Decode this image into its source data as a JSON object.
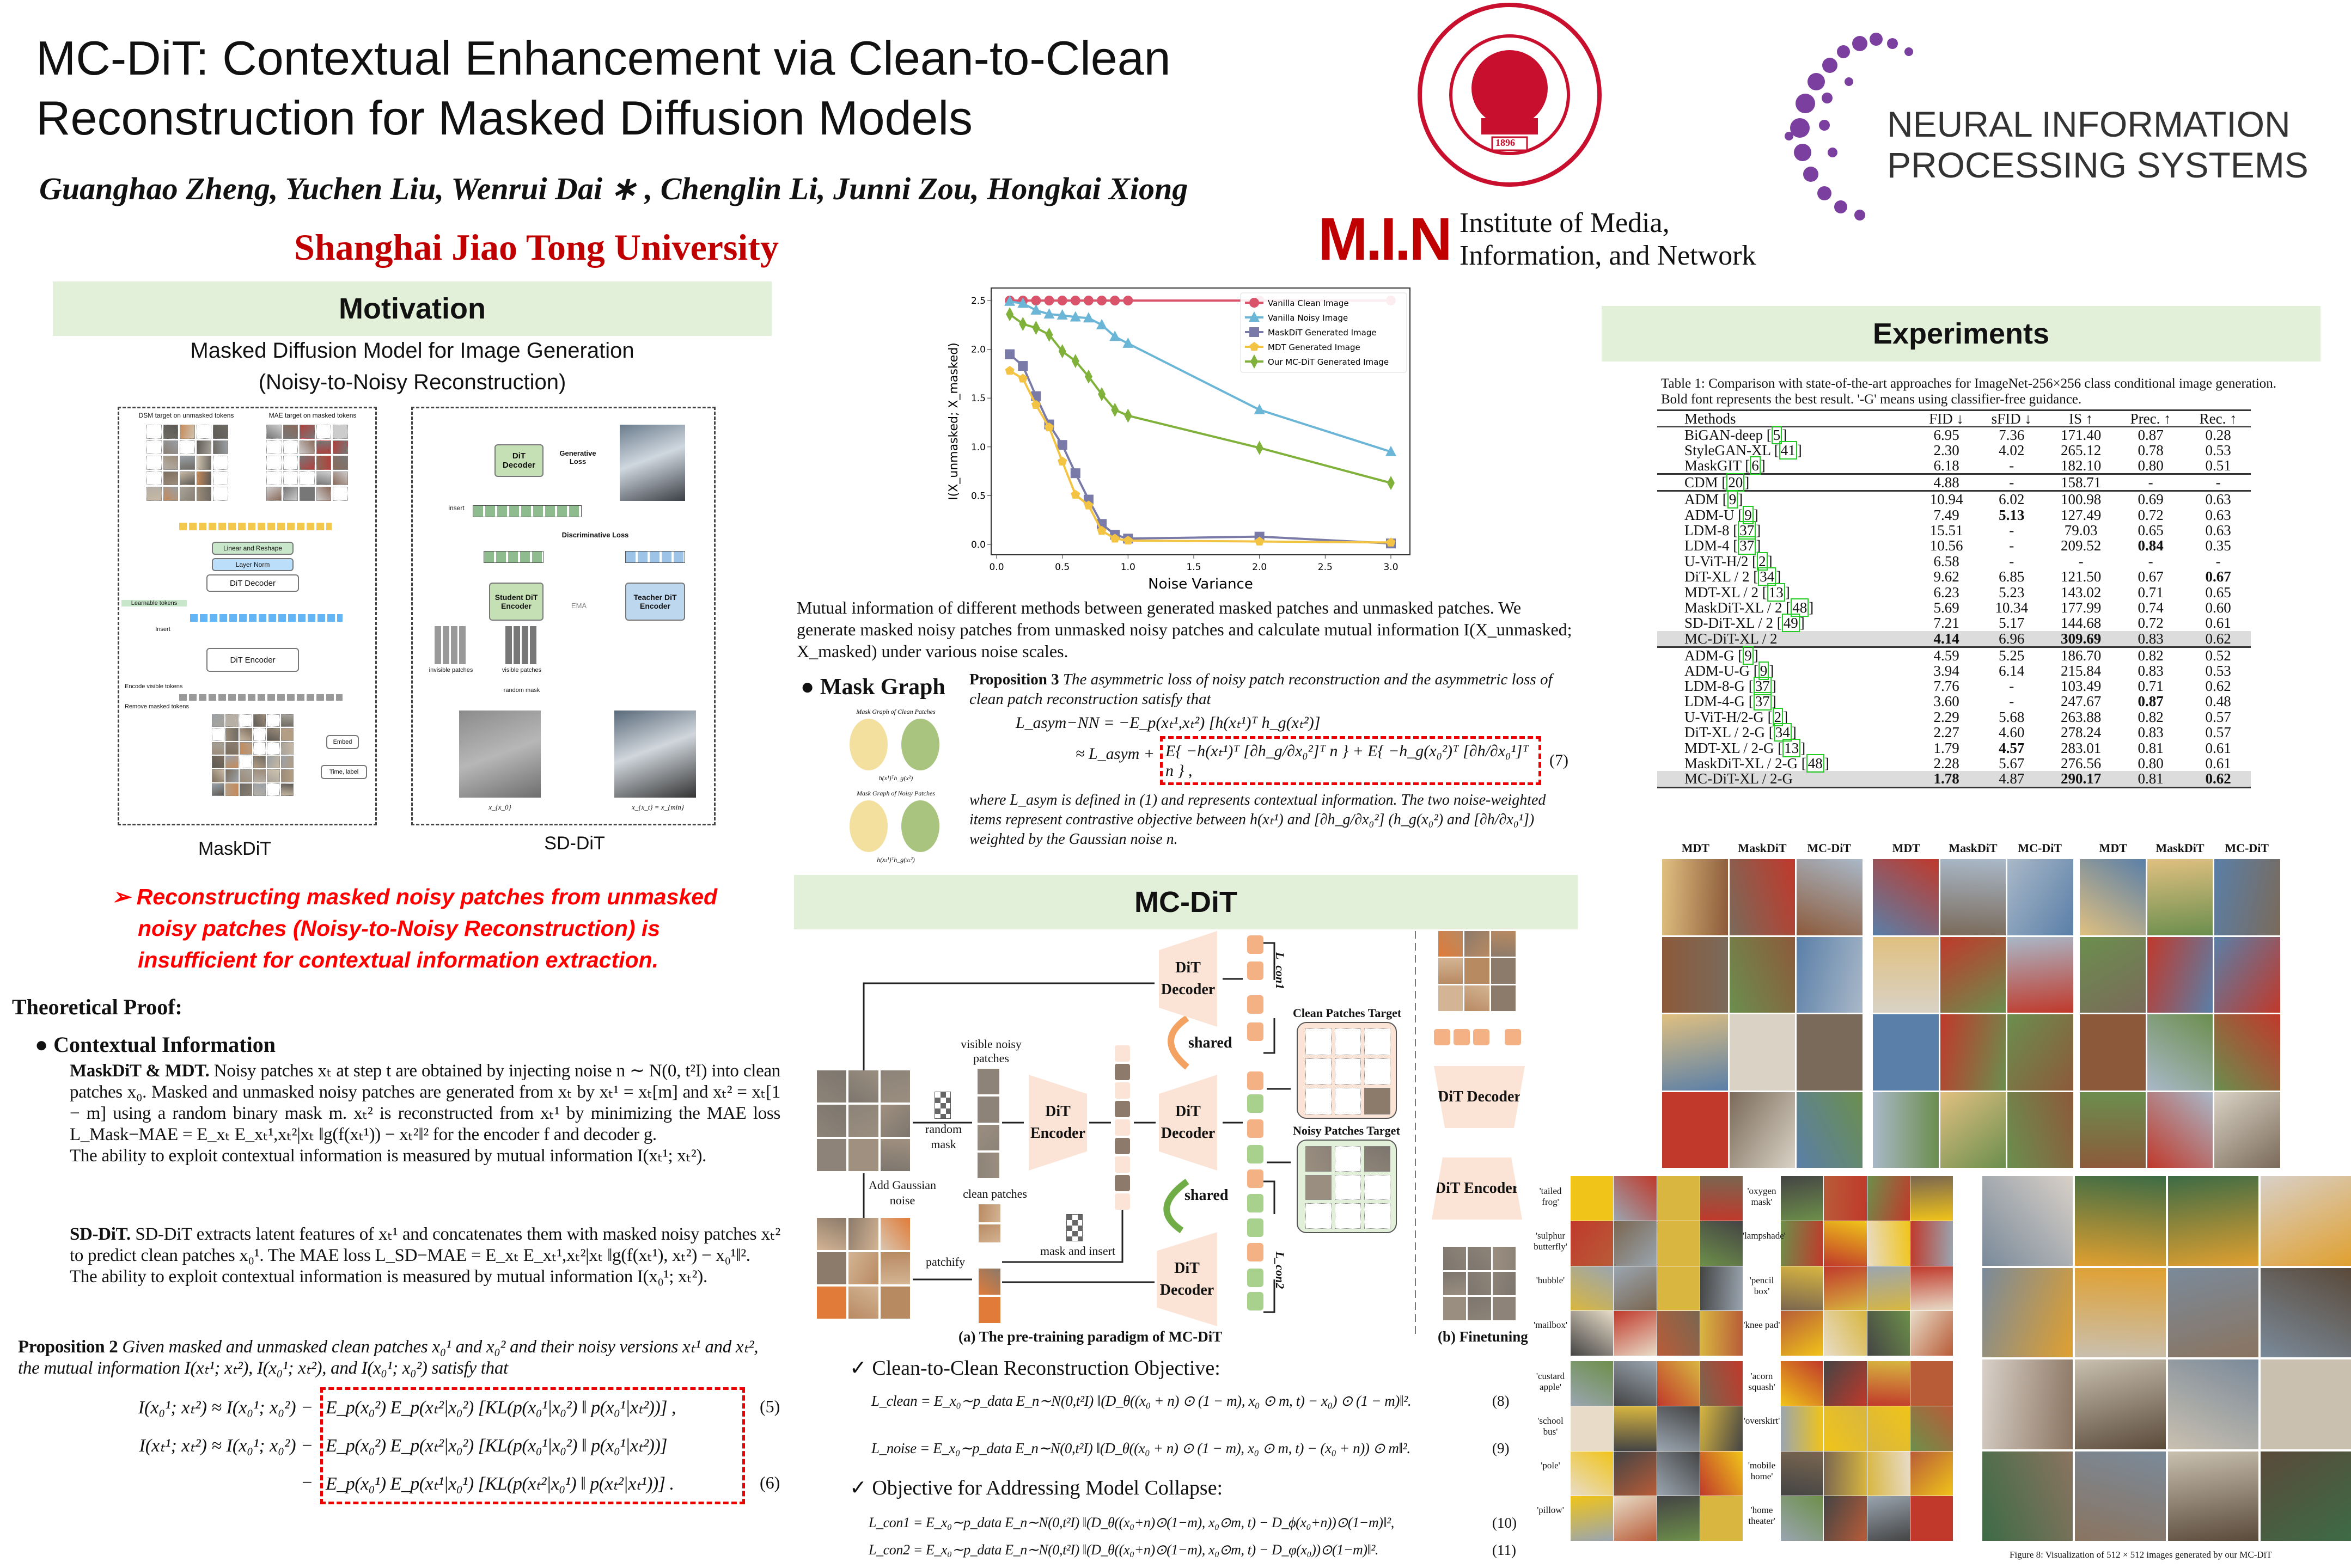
{
  "header": {
    "title_line1": "MC-DiT: Contextual Enhancement via Clean-to-Clean",
    "title_line2": "Reconstruction for Masked Diffusion Models",
    "authors": "Guanghao Zheng, Yuchen Liu, Wenrui Dai ∗ , Chenglin Li, Junni Zou, Hongkai Xiong",
    "affiliation": "Shanghai Jiao Tong University",
    "logos": {
      "sjtu_ring_text": "SHANGHAI JIAO TONG UNIVERSITY",
      "sjtu_year": "1896",
      "min_mark": "M.I.N",
      "min_text_1": "Institute of Media,",
      "min_text_2": "Information, and Network",
      "neurips_1": "NEURAL INFORMATION",
      "neurips_2": "PROCESSING SYSTEMS"
    }
  },
  "motivation": {
    "heading": "Motivation",
    "subtitle1": "Masked Diffusion Model for Image Generation",
    "subtitle2": "(Noisy-to-Noisy Reconstruction)",
    "maskdit_fig": {
      "caption": "MaskDiT",
      "labels": [
        "DSM target on unmasked tokens",
        "MAE target on masked tokens",
        "Linear and Reshape",
        "Layer Norm",
        "DiT Decoder",
        "Learnable tokens",
        "Insert",
        "DiT Encoder",
        "Encode visible tokens",
        "Remove masked tokens",
        "Embed",
        "Time, label"
      ]
    },
    "sddit_fig": {
      "caption": "SD-DiT",
      "labels": [
        "DiT Decoder",
        "Generative Loss",
        "insert",
        "Discriminative Loss",
        "Student DiT Encoder",
        "EMA",
        "Teacher DiT Encoder",
        "invisible patches",
        "visible patches",
        "random mask",
        "x_{x_0}",
        "x_{x_t} = x_{min}"
      ]
    },
    "highlight_line1": "Reconstructing masked noisy patches from unmasked",
    "highlight_line2": "noisy patches (Noisy-to-Noisy Reconstruction) is",
    "highlight_line3": "insufficient for contextual information extraction."
  },
  "theory": {
    "heading": "Theoretical Proof:",
    "bullet": "Contextual Information",
    "maskdit_lead": "MaskDiT & MDT.",
    "maskdit_text": "Noisy patches xₜ at step t are obtained by injecting noise n ∼ N(0, t²I) into clean patches x₀. Masked and unmasked noisy patches are generated from xₜ by xₜ¹ = xₜ[m] and xₜ² = xₜ[1 − m] using a random binary mask m. xₜ² is reconstructed from xₜ¹ by minimizing the MAE loss L_Mask−MAE = E_xₜ E_xₜ¹,xₜ²|xₜ ‖g(f(xₜ¹)) − xₜ²‖² for the encoder f and decoder g.",
    "maskdit_measure": "The ability to exploit contextual information is measured by mutual information I(xₜ¹; xₜ²).",
    "sddit_lead": "SD-DiT.",
    "sddit_text": "SD-DiT extracts latent features of xₜ¹ and concatenates them with masked noisy patches xₜ² to predict clean patches x₀¹. The MAE loss L_SD−MAE = E_xₜ E_xₜ¹,xₜ²|xₜ ‖g(f(xₜ¹), xₜ²) − x₀¹‖².",
    "sddit_measure": "The ability to exploit contextual information is measured by mutual information I(x₀¹; xₜ²).",
    "prop2_lead": "Proposition 2",
    "prop2_text": "Given masked and unmasked clean patches x₀¹ and x₀² and their noisy versions xₜ¹ and xₜ², the mutual information I(xₜ¹; xₜ²), I(x₀¹; xₜ²), and I(x₀¹; x₀²) satisfy that",
    "eq5_lhs": "I(x₀¹; xₜ²) ≈ I(x₀¹; x₀²) −",
    "eq5_rhs": "E_p(x₀²) E_p(xₜ²|x₀²) [KL(p(x₀¹|x₀²) ‖ p(x₀¹|xₜ²))] ,",
    "eq6a_lhs": "I(xₜ¹; xₜ²) ≈ I(x₀¹; x₀²) −",
    "eq6a_rhs": "E_p(x₀²) E_p(xₜ²|x₀²) [KL(p(x₀¹|x₀²) ‖ p(x₀¹|xₜ²))]",
    "eq6b_lhs": "−",
    "eq6b_rhs": "E_p(x₀¹) E_p(xₜ¹|x₀¹) [KL(p(xₜ²|x₀¹) ‖ p(xₜ²|xₜ¹))] .",
    "eq5_num": "(5)",
    "eq6_num": "(6)"
  },
  "chart_data": {
    "type": "line",
    "xlabel": "Noise Variance",
    "ylabel": "I(X_unmasked; X_masked)",
    "xlim": [
      0,
      3.0
    ],
    "ylim": [
      -0.1,
      2.6
    ],
    "xticks": [
      "0.0",
      "0.5",
      "1.0",
      "1.5",
      "2.0",
      "2.5",
      "3.0"
    ],
    "yticks": [
      "0.0",
      "0.5",
      "1.0",
      "1.5",
      "2.0",
      "2.5"
    ],
    "grid": false,
    "legend": "top-right",
    "x": [
      0.1,
      0.2,
      0.3,
      0.4,
      0.5,
      0.6,
      0.7,
      0.8,
      0.9,
      1.0,
      2.0,
      3.0
    ],
    "series": [
      {
        "name": "Vanilla Clean Image",
        "color": "#d9546b",
        "marker": "circle",
        "values": [
          2.5,
          2.5,
          2.5,
          2.5,
          2.5,
          2.5,
          2.5,
          2.5,
          2.5,
          2.5,
          2.5,
          2.5
        ]
      },
      {
        "name": "Vanilla Noisy Image",
        "color": "#6bb6d6",
        "marker": "triangle",
        "values": [
          2.49,
          2.47,
          2.4,
          2.36,
          2.35,
          2.33,
          2.32,
          2.25,
          2.13,
          2.06,
          1.38,
          0.95
        ]
      },
      {
        "name": "MaskDiT Generated Image",
        "color": "#7a7aa8",
        "marker": "square",
        "values": [
          1.95,
          1.83,
          1.52,
          1.23,
          1.02,
          0.73,
          0.46,
          0.21,
          0.1,
          0.06,
          0.08,
          0.01
        ]
      },
      {
        "name": "MDT Generated Image",
        "color": "#f3c443",
        "marker": "pentagon",
        "values": [
          1.78,
          1.7,
          1.43,
          1.2,
          0.85,
          0.51,
          0.4,
          0.14,
          0.06,
          0.04,
          0.03,
          0.02
        ]
      },
      {
        "name": "Our MC-DiT Generated Image",
        "color": "#7fb13b",
        "marker": "diamond",
        "values": [
          2.36,
          2.26,
          2.22,
          2.15,
          1.98,
          1.88,
          1.72,
          1.54,
          1.38,
          1.32,
          0.99,
          0.63
        ]
      }
    ]
  },
  "middle": {
    "chart_caption": "Mutual information of different methods between generated masked patches and unmasked patches. We generate masked noisy patches from unmasked noisy patches and calculate mutual information I(X_unmasked; X_masked) under various noise scales.",
    "mask_graph_heading": "Mask Graph",
    "mask_graph_clean": "Mask Graph of Clean Patches",
    "mask_graph_noisy": "Mask Graph of Noisy Patches",
    "mask_graph_clean_formula": "h(x¹)ᵀh_g(x²)",
    "mask_graph_noisy_formula": "h(xₜ¹)ᵀh_g(xₜ²)",
    "prop3_lead": "Proposition 3",
    "prop3_text": "The asymmetric loss of noisy patch reconstruction and the asymmetric loss of clean patch reconstruction satisfy that",
    "eq7_line1": "L_asym−NN = −E_p(xₜ¹,xₜ²) [h(xₜ¹)ᵀ h_g(xₜ²)]",
    "eq7_line2_lhs": "≈ L_asym +",
    "eq7_line2_rhs": "E{ −h(xₜ¹)ᵀ [∂h_g/∂x₀²]ᵀ n } + E{ −h_g(x₀²)ᵀ [∂h/∂x₀¹]ᵀ n } ,",
    "eq7_num": "(7)",
    "prop3_after": "where L_asym is defined in (1) and represents contextual information. The two noise-weighted items represent contrastive objective between h(xₜ¹) and [∂h_g/∂x₀²] (h_g(x₀²) and [∂h/∂x₀¹]) weighted by the Gaussian noise n.",
    "mcdit_heading": "MC-DiT",
    "pipeline": {
      "dit_decoder": "DiT Decoder",
      "dit_encoder": "DiT Encoder",
      "shared": "shared",
      "visible_noisy": "visible noisy patches",
      "random_mask": "random mask",
      "add_noise": "Add Gaussian noise",
      "clean_patches": "clean patches",
      "patchify": "patchify",
      "mask_insert": "mask and insert",
      "clean_target": "Clean Patches Target",
      "noisy_target": "Noisy Patches Target",
      "l_con1": "L_con1",
      "l_con2": "L_con2",
      "caption_a": "(a) The pre-training paradigm of MC-DiT",
      "caption_b": "(b) Finetuning"
    },
    "obj1_heading": "Clean-to-Clean Reconstruction Objective:",
    "eq8": "L_clean = E_x₀∼p_data E_n∼N(0,t²I) ‖(D_θ((x₀ + n) ⊙ (1 − m), x₀ ⊙ m, t) − x₀) ⊙ (1 − m)‖².",
    "eq8_num": "(8)",
    "eq9": "L_noise = E_x₀∼p_data E_n∼N(0,t²I) ‖(D_θ((x₀ + n) ⊙ (1 − m), x₀ ⊙ m, t) − (x₀ + n)) ⊙ m‖².",
    "eq9_num": "(9)",
    "obj2_heading": "Objective for Addressing Model Collapse:",
    "eq10": "L_con1 = E_x₀∼p_data E_n∼N(0,t²I) ‖(D_θ((x₀+n)⊙(1−m), x₀⊙m, t) − D_ϕ(x₀+n))⊙(1−m)‖²,",
    "eq10_num": "(10)",
    "eq11": "L_con2 = E_x₀∼p_data E_n∼N(0,t²I) ‖(D_θ((x₀+n)⊙(1−m), x₀⊙m, t) − D_φ(x₀))⊙(1−m)‖².",
    "eq11_num": "(11)"
  },
  "experiments": {
    "heading": "Experiments",
    "table_caption": "Table 1: Comparison with state-of-the-art approaches for ImageNet-256×256 class conditional image generation. Bold font represents the best result. '-G' means using classifier-free guidance.",
    "columns": [
      "Methods",
      "FID ↓",
      "sFID ↓",
      "IS ↑",
      "Prec. ↑",
      "Rec. ↑"
    ],
    "rows": [
      {
        "method": "BiGAN-deep",
        "ref": "5",
        "vals": [
          "6.95",
          "7.36",
          "171.40",
          "0.87",
          "0.28"
        ],
        "group_start": false
      },
      {
        "method": "StyleGAN-XL",
        "ref": "41",
        "vals": [
          "2.30",
          "4.02",
          "265.12",
          "0.78",
          "0.53"
        ]
      },
      {
        "method": "MaskGIT",
        "ref": "6",
        "vals": [
          "6.18",
          "-",
          "182.10",
          "0.80",
          "0.51"
        ]
      },
      {
        "method": "CDM",
        "ref": "20",
        "vals": [
          "4.88",
          "-",
          "158.71",
          "-",
          "-"
        ],
        "group_start": true
      },
      {
        "method": "ADM",
        "ref": "9",
        "vals": [
          "10.94",
          "6.02",
          "100.98",
          "0.69",
          "0.63"
        ],
        "group_start": true
      },
      {
        "method": "ADM-U",
        "ref": "9",
        "vals": [
          "7.49",
          "5.13",
          "127.49",
          "0.72",
          "0.63"
        ],
        "bold": [
          1
        ]
      },
      {
        "method": "LDM-8",
        "ref": "37",
        "vals": [
          "15.51",
          "-",
          "79.03",
          "0.65",
          "0.63"
        ]
      },
      {
        "method": "LDM-4",
        "ref": "37",
        "vals": [
          "10.56",
          "-",
          "209.52",
          "0.84",
          "0.35"
        ],
        "bold": [
          3
        ]
      },
      {
        "method": "U-ViT-H/2",
        "ref": "2",
        "vals": [
          "6.58",
          "-",
          "-",
          "-",
          "-"
        ]
      },
      {
        "method": "DiT-XL / 2",
        "ref": "34",
        "vals": [
          "9.62",
          "6.85",
          "121.50",
          "0.67",
          "0.67"
        ],
        "bold": [
          4
        ]
      },
      {
        "method": "MDT-XL / 2",
        "ref": "13",
        "vals": [
          "6.23",
          "5.23",
          "143.02",
          "0.71",
          "0.65"
        ]
      },
      {
        "method": "MaskDiT-XL / 2",
        "ref": "48",
        "vals": [
          "5.69",
          "10.34",
          "177.99",
          "0.74",
          "0.60"
        ]
      },
      {
        "method": "SD-DiT-XL / 2",
        "ref": "49",
        "vals": [
          "7.21",
          "5.17",
          "144.68",
          "0.72",
          "0.61"
        ]
      },
      {
        "method": "MC-DiT-XL / 2",
        "ref": "",
        "vals": [
          "4.14",
          "6.96",
          "309.69",
          "0.83",
          "0.62"
        ],
        "bold": [
          0,
          2
        ],
        "highlight": true
      },
      {
        "method": "ADM-G",
        "ref": "9",
        "vals": [
          "4.59",
          "5.25",
          "186.70",
          "0.82",
          "0.52"
        ],
        "group_start": true
      },
      {
        "method": "ADM-U-G",
        "ref": "9",
        "vals": [
          "3.94",
          "6.14",
          "215.84",
          "0.83",
          "0.53"
        ]
      },
      {
        "method": "LDM-8-G",
        "ref": "37",
        "vals": [
          "7.76",
          "-",
          "103.49",
          "0.71",
          "0.62"
        ]
      },
      {
        "method": "LDM-4-G",
        "ref": "37",
        "vals": [
          "3.60",
          "-",
          "247.67",
          "0.87",
          "0.48"
        ],
        "bold": [
          3
        ]
      },
      {
        "method": "U-ViT-H/2-G",
        "ref": "2",
        "vals": [
          "2.29",
          "5.68",
          "263.88",
          "0.82",
          "0.57"
        ]
      },
      {
        "method": "DiT-XL / 2-G",
        "ref": "34",
        "vals": [
          "2.27",
          "4.60",
          "278.24",
          "0.83",
          "0.57"
        ]
      },
      {
        "method": "MDT-XL / 2-G",
        "ref": "13",
        "vals": [
          "1.79",
          "4.57",
          "283.01",
          "0.81",
          "0.61"
        ],
        "bold": [
          1
        ]
      },
      {
        "method": "MaskDiT-XL / 2-G",
        "ref": "48",
        "vals": [
          "2.28",
          "5.67",
          "276.56",
          "0.80",
          "0.61"
        ]
      },
      {
        "method": "MC-DiT-XL / 2-G",
        "ref": "",
        "vals": [
          "1.78",
          "4.87",
          "290.17",
          "0.81",
          "0.62"
        ],
        "bold": [
          0,
          2,
          4
        ],
        "highlight": true
      }
    ],
    "comparison_headers": [
      "MDT",
      "MaskDiT",
      "MC-DiT"
    ],
    "class_labels_left_a": [
      "'tailed frog'",
      "'sulphur butterfly'",
      "'bubble'",
      "'mailbox'"
    ],
    "class_labels_left_b": [
      "'custard apple'",
      "'school bus'",
      "'pole'",
      "'pillow'"
    ],
    "class_labels_mid_a": [
      "'oxygen mask'",
      "'lampshade'",
      "'pencil box'",
      "'knee pad'"
    ],
    "class_labels_mid_b": [
      "'acorn squash'",
      "'overskirt'",
      "'mobile home'",
      "'home theater'"
    ],
    "figure_caption": "Figure 8: Visualization of 512 × 512 images generated by our MC-DiT"
  },
  "colors": {
    "section_header_bg": "#e2efd9",
    "affiliation_red": "#c00000",
    "highlight_red": "#ff0000",
    "decoder_fill": "#fbe4d5",
    "token_orange": "#f4b183",
    "token_green": "#a9d18e",
    "neurips_purple": "#7b3fa0"
  }
}
